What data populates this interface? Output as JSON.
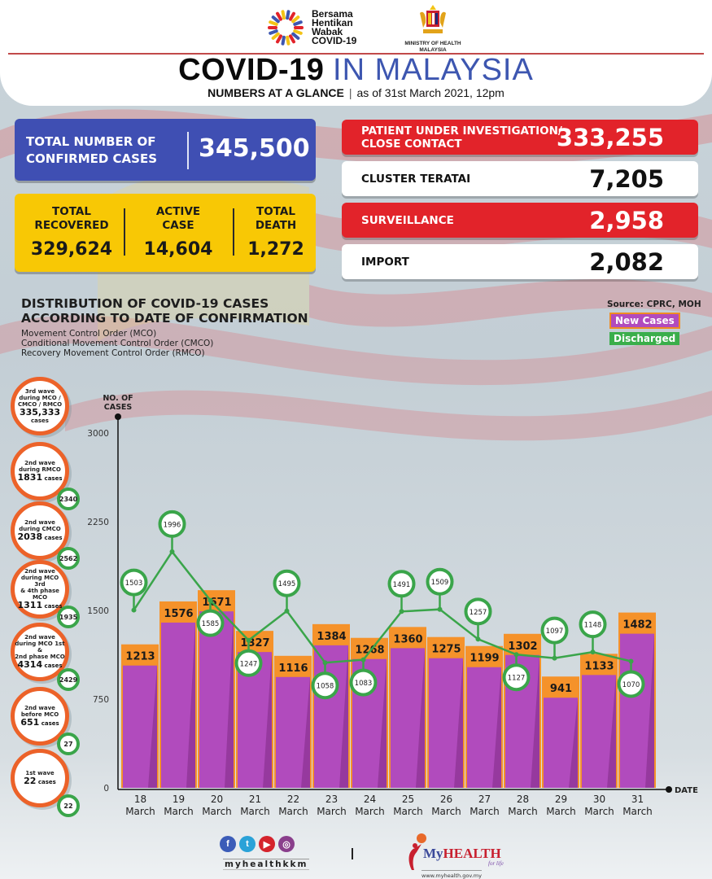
{
  "header": {
    "campaign_logo_text": [
      "Bersama",
      "Hentikan",
      "Wabak",
      "COVID-19"
    ],
    "ministry_line1": "MINISTRY OF HEALTH",
    "ministry_line2": "MALAYSIA",
    "title_bold": "COVID-19",
    "title_light": "IN MALAYSIA",
    "subtitle_bold": "NUMBERS AT A GLANCE",
    "subtitle_sep": "|",
    "subtitle_date": "as of 31st March 2021, 12pm"
  },
  "summary": {
    "confirmed_label_1": "TOTAL NUMBER OF",
    "confirmed_label_2": "CONFIRMED CASES",
    "confirmed_value": "345,500",
    "recovered_label_1": "TOTAL",
    "recovered_label_2": "RECOVERED",
    "recovered_value": "329,624",
    "active_label_1": "ACTIVE",
    "active_label_2": "CASE",
    "active_value": "14,604",
    "death_label_1": "TOTAL",
    "death_label_2": "DEATH",
    "death_value": "1,272"
  },
  "breakdown": [
    {
      "label_1": "PATIENT UNDER INVESTIGATION/",
      "label_2": "CLOSE CONTACT",
      "value": "333,255",
      "style": "red"
    },
    {
      "label_1": "CLUSTER TERATAI",
      "label_2": "",
      "value": "7,205",
      "style": "white"
    },
    {
      "label_1": "SURVEILLANCE",
      "label_2": "",
      "value": "2,958",
      "style": "red"
    },
    {
      "label_1": "IMPORT",
      "label_2": "",
      "value": "2,082",
      "style": "white"
    }
  ],
  "distribution": {
    "title_1": "DISTRIBUTION OF COVID-19 CASES",
    "title_2": "ACCORDING TO DATE OF CONFIRMATION",
    "notes": [
      "Movement Control Order (MCO)",
      "Conditional Movement Control Order (CMCO)",
      "Recovery Movement Control Order (RMCO)"
    ],
    "source": "Source: CPRC, MOH"
  },
  "waves": [
    {
      "lines": [
        "3rd wave",
        "during MCO /",
        "CMCO / RMCO"
      ],
      "count": "335,333",
      "unit": "cases",
      "discharged": ""
    },
    {
      "lines": [
        "2nd wave",
        "during RMCO"
      ],
      "count": "1831",
      "unit": "cases",
      "discharged": "2340"
    },
    {
      "lines": [
        "2nd wave",
        "during CMCO"
      ],
      "count": "2038",
      "unit": "cases",
      "discharged": "2562"
    },
    {
      "lines": [
        "2nd wave",
        "during MCO 3rd",
        "& 4th phase MCO"
      ],
      "count": "1311",
      "unit": "cases",
      "discharged": "1935"
    },
    {
      "lines": [
        "2nd wave",
        "during MCO 1st &",
        "2nd phase MCO"
      ],
      "count": "4314",
      "unit": "cases",
      "discharged": "2429"
    },
    {
      "lines": [
        "2nd wave",
        "before MCO"
      ],
      "count": "651",
      "unit": "cases",
      "discharged": "27"
    },
    {
      "lines": [
        "1st wave"
      ],
      "count": "22",
      "unit": "cases",
      "discharged": "22"
    }
  ],
  "colors": {
    "blue": "#3f4fb3",
    "yellow": "#f8c805",
    "red": "#e2232a",
    "new_cases_bar": "#b14bbd",
    "new_cases_cap": "#f5922a",
    "discharged": "#3aa54a",
    "wave_ring": "#ec6229"
  },
  "chart_data": {
    "type": "bar",
    "title": "DISTRIBUTION OF COVID-19 CASES ACCORDING TO DATE OF CONFIRMATION",
    "xlabel": "DATE",
    "ylabel": "NO. OF CASES",
    "ylim": [
      0,
      3000
    ],
    "yticks": [
      0,
      750,
      1500,
      2250,
      3000
    ],
    "categories": [
      [
        "18",
        "March"
      ],
      [
        "19",
        "March"
      ],
      [
        "20",
        "March"
      ],
      [
        "21",
        "March"
      ],
      [
        "22",
        "March"
      ],
      [
        "23",
        "March"
      ],
      [
        "24",
        "March"
      ],
      [
        "25",
        "March"
      ],
      [
        "26",
        "March"
      ],
      [
        "27",
        "March"
      ],
      [
        "28",
        "March"
      ],
      [
        "29",
        "March"
      ],
      [
        "30",
        "March"
      ],
      [
        "31",
        "March"
      ]
    ],
    "series": [
      {
        "name": "New Cases",
        "type": "bar",
        "values": [
          1213,
          1576,
          1671,
          1327,
          1116,
          1384,
          1268,
          1360,
          1275,
          1199,
          1302,
          941,
          1133,
          1482
        ]
      },
      {
        "name": "Discharged",
        "type": "line",
        "values": [
          1503,
          1996,
          1585,
          1247,
          1495,
          1058,
          1083,
          1491,
          1509,
          1257,
          1127,
          1097,
          1148,
          1070
        ]
      }
    ],
    "legend": [
      "New Cases",
      "Discharged"
    ],
    "legend_position": "top-right",
    "grid": false
  },
  "footer": {
    "social_handle": "myhealthkkm",
    "social_icons": [
      "facebook-icon",
      "twitter-icon",
      "youtube-icon",
      "instagram-icon"
    ],
    "separator": "|",
    "brand_my": "My",
    "brand_health": "HEALTH",
    "brand_tagline": "for life",
    "brand_url": "www.myhealth.gov.my"
  }
}
